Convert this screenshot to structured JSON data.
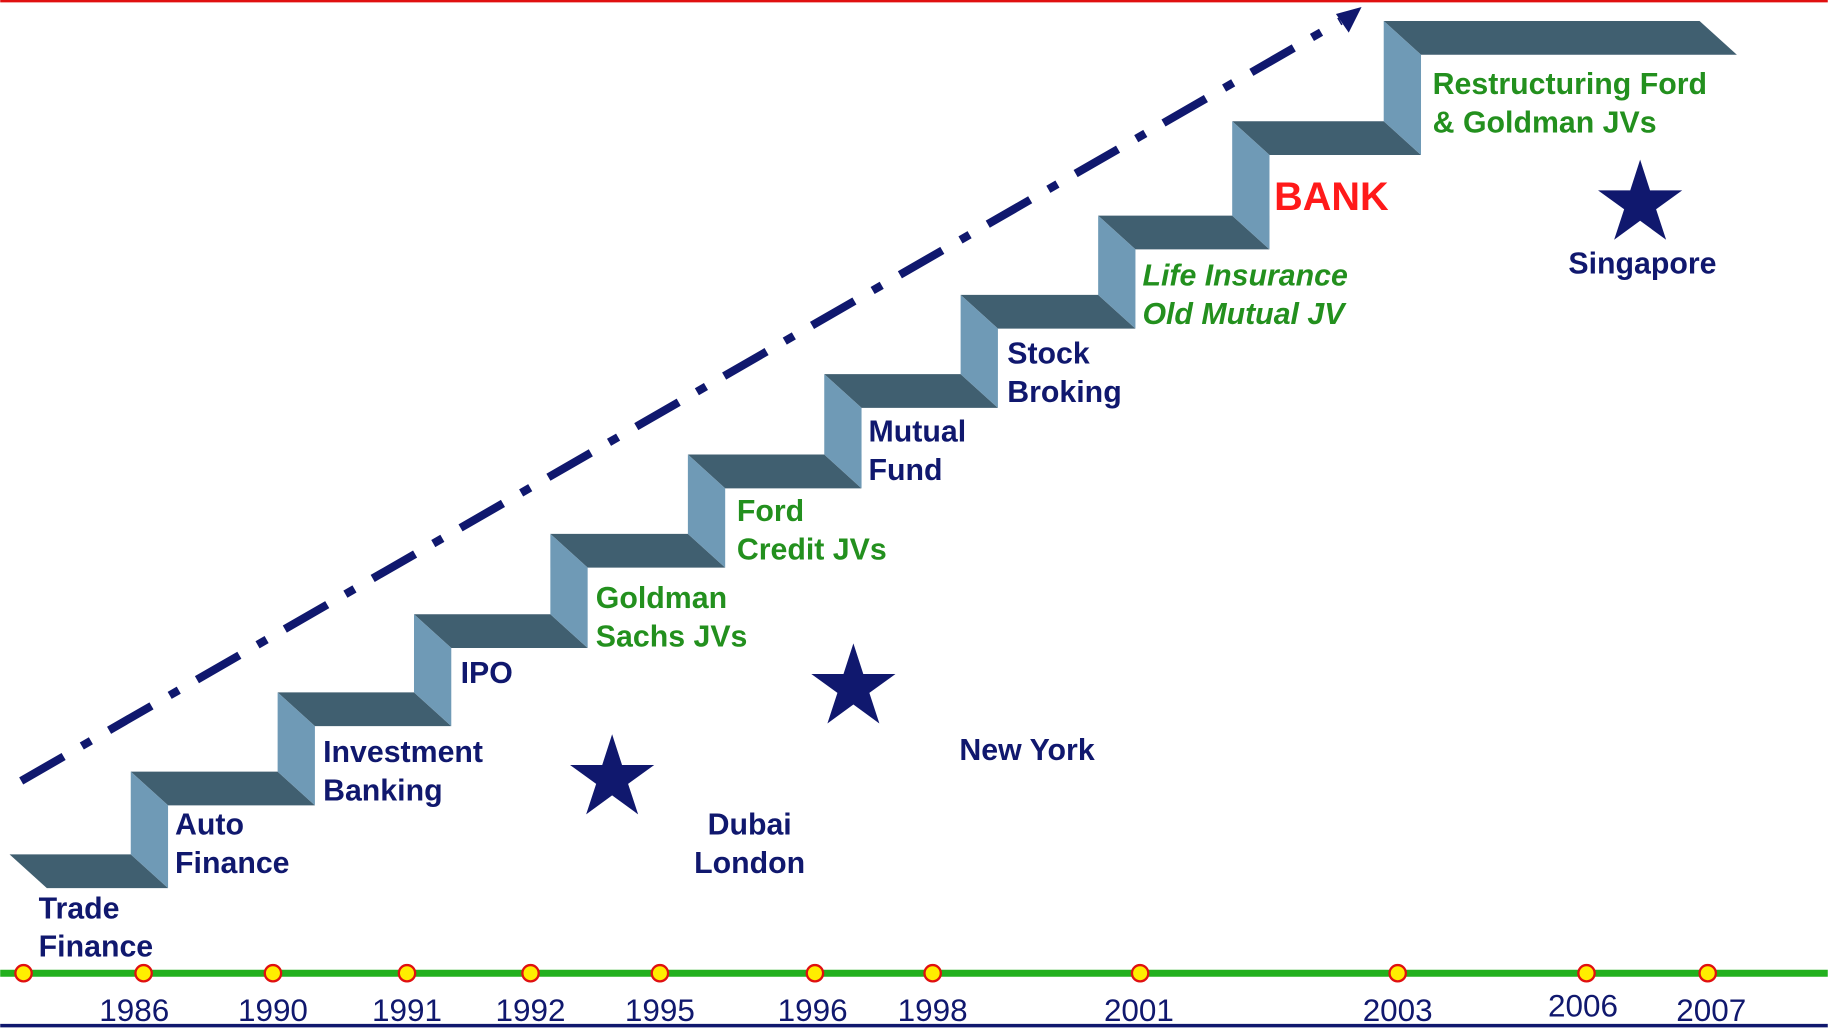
{
  "steps": [
    {
      "lines": [
        "Trade",
        "Finance"
      ]
    },
    {
      "lines": [
        "Auto",
        "Finance"
      ]
    },
    {
      "lines": [
        "Investment",
        "Banking"
      ]
    },
    {
      "lines": [
        "IPO"
      ]
    },
    {
      "lines": [
        "Goldman",
        "Sachs JVs"
      ]
    },
    {
      "lines": [
        "Ford",
        "Credit JVs"
      ]
    },
    {
      "lines": [
        "Mutual",
        "Fund"
      ]
    },
    {
      "lines": [
        "Stock",
        "Broking"
      ]
    },
    {
      "lines": [
        "Life Insurance",
        "Old Mutual JV"
      ]
    },
    {
      "lines": [
        "BANK"
      ]
    },
    {
      "lines": [
        "Restructuring Ford",
        "& Goldman JVs"
      ]
    }
  ],
  "locations": [
    {
      "lines": [
        "Dubai",
        "London"
      ]
    },
    {
      "lines": [
        "New York"
      ]
    },
    {
      "lines": [
        "Singapore"
      ]
    }
  ],
  "years": [
    "1986",
    "1990",
    "1991",
    "1992",
    "1995",
    "1996",
    "1998",
    "2001",
    "2003",
    "2006",
    "2007"
  ]
}
